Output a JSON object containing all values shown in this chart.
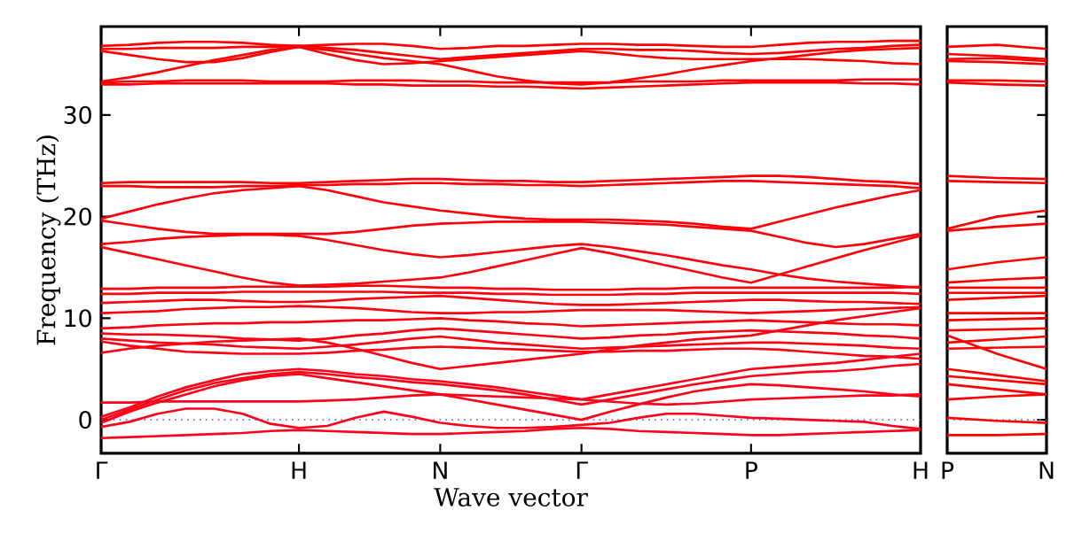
{
  "chart_data": [
    {
      "type": "line",
      "xlabel": "Wave vector",
      "ylabel": "Frequency (THz)",
      "categories": [
        "Γ",
        null,
        null,
        null,
        null,
        null,
        null,
        "H",
        null,
        null,
        null,
        null,
        "N",
        null,
        null,
        null,
        null,
        "Γ",
        null,
        null,
        null,
        null,
        null,
        "P",
        null,
        null,
        null,
        null,
        null,
        "H"
      ],
      "ylim": [
        -3.3,
        38.7
      ],
      "yticks": [
        0,
        10,
        20,
        30
      ],
      "marker": "none",
      "line_style": "solid",
      "ref_lines": [
        {
          "axis": "y",
          "value": 0,
          "color": "#6a6ad0",
          "line_style": "dotted"
        }
      ],
      "series": [
        {
          "color": "#ff0001",
          "values": [
            36.8,
            36.9,
            37.1,
            37.2,
            37.2,
            37.1,
            36.9,
            36.8,
            36.9,
            37.0,
            37.0,
            36.8,
            36.5,
            36.6,
            36.8,
            36.8,
            36.9,
            37.0,
            37.0,
            36.9,
            36.9,
            36.8,
            36.7,
            36.7,
            36.9,
            37.1,
            37.2,
            37.2,
            37.3,
            37.3
          ]
        },
        {
          "color": "#ff0002",
          "values": [
            36.5,
            36.5,
            36.6,
            36.6,
            36.6,
            36.7,
            36.7,
            36.8,
            36.6,
            36.4,
            36.1,
            35.8,
            35.5,
            35.7,
            35.9,
            36.1,
            36.3,
            36.5,
            36.5,
            36.4,
            36.4,
            36.3,
            36.1,
            36.0,
            36.1,
            36.3,
            36.5,
            36.6,
            36.8,
            36.9
          ]
        },
        {
          "color": "#ff0003",
          "values": [
            36.3,
            35.9,
            35.5,
            35.2,
            35.2,
            35.6,
            36.2,
            36.7,
            36.0,
            35.4,
            35.0,
            35.1,
            35.3,
            35.5,
            35.7,
            35.9,
            36.1,
            36.3,
            36.1,
            35.8,
            35.6,
            35.5,
            35.5,
            35.5,
            35.5,
            35.5,
            35.4,
            35.3,
            35.1,
            35.0
          ]
        },
        {
          "color": "#ff0004",
          "values": [
            33.3,
            33.7,
            34.2,
            34.8,
            35.4,
            35.9,
            36.4,
            36.7,
            36.4,
            36.0,
            35.6,
            35.3,
            35.0,
            34.4,
            33.8,
            33.4,
            33.1,
            33.0,
            33.2,
            33.6,
            34.0,
            34.5,
            34.9,
            35.3,
            35.6,
            35.9,
            36.2,
            36.4,
            36.5,
            36.6
          ]
        },
        {
          "color": "#ff0005",
          "values": [
            33.2,
            33.3,
            33.3,
            33.4,
            33.4,
            33.4,
            33.3,
            33.3,
            33.3,
            33.4,
            33.4,
            33.4,
            33.3,
            33.3,
            33.2,
            33.2,
            33.2,
            33.2,
            33.2,
            33.3,
            33.3,
            33.3,
            33.4,
            33.4,
            33.4,
            33.4,
            33.4,
            33.5,
            33.5,
            33.5
          ]
        },
        {
          "color": "#ff0006",
          "values": [
            33.0,
            33.0,
            33.1,
            33.1,
            33.1,
            33.1,
            33.1,
            33.1,
            33.1,
            33.0,
            33.0,
            32.9,
            32.9,
            32.9,
            32.8,
            32.8,
            32.7,
            32.6,
            32.7,
            32.8,
            32.9,
            33.0,
            33.1,
            33.2,
            33.2,
            33.2,
            33.2,
            33.1,
            33.1,
            33.0
          ]
        },
        {
          "color": "#ff0007",
          "values": [
            23.3,
            23.4,
            23.4,
            23.4,
            23.4,
            23.4,
            23.3,
            23.3,
            23.4,
            23.5,
            23.6,
            23.7,
            23.7,
            23.6,
            23.5,
            23.5,
            23.4,
            23.4,
            23.5,
            23.6,
            23.7,
            23.8,
            23.9,
            24.0,
            24.0,
            23.9,
            23.7,
            23.5,
            23.4,
            23.2
          ]
        },
        {
          "color": "#ff0008",
          "values": [
            23.0,
            23.0,
            22.9,
            22.9,
            22.9,
            23.0,
            23.0,
            23.1,
            23.1,
            23.2,
            23.2,
            23.3,
            23.3,
            23.2,
            23.2,
            23.1,
            23.1,
            23.0,
            23.1,
            23.2,
            23.3,
            23.4,
            23.5,
            23.5,
            23.4,
            23.3,
            23.2,
            23.1,
            23.0,
            22.8
          ]
        },
        {
          "color": "#ff0009",
          "values": [
            19.8,
            20.5,
            21.2,
            21.8,
            22.3,
            22.6,
            22.8,
            23.0,
            22.6,
            22.0,
            21.4,
            21.0,
            20.6,
            20.3,
            20.0,
            19.8,
            19.7,
            19.7,
            19.7,
            19.6,
            19.5,
            19.3,
            19.0,
            18.8,
            19.5,
            20.2,
            20.9,
            21.5,
            22.1,
            22.6
          ]
        },
        {
          "color": "#ff000a",
          "values": [
            19.6,
            19.2,
            18.8,
            18.5,
            18.3,
            18.3,
            18.3,
            18.3,
            18.3,
            18.5,
            18.8,
            19.1,
            19.3,
            19.4,
            19.5,
            19.5,
            19.5,
            19.5,
            19.4,
            19.3,
            19.2,
            19.0,
            18.8,
            18.6,
            18.0,
            17.4,
            17.0,
            17.3,
            17.8,
            18.3
          ]
        },
        {
          "color": "#ff000b",
          "values": [
            17.3,
            17.5,
            17.8,
            18.0,
            18.1,
            18.2,
            18.2,
            18.1,
            17.7,
            17.2,
            16.7,
            16.3,
            16.0,
            16.2,
            16.5,
            16.8,
            17.1,
            17.3,
            17.0,
            16.6,
            16.2,
            15.7,
            15.2,
            14.8,
            14.3,
            13.9,
            13.6,
            13.4,
            13.2,
            13.0
          ]
        },
        {
          "color": "#ff000c",
          "values": [
            17.0,
            16.4,
            15.8,
            15.2,
            14.6,
            14.0,
            13.5,
            13.2,
            13.3,
            13.4,
            13.6,
            13.8,
            14.0,
            14.5,
            15.1,
            15.7,
            16.3,
            16.9,
            16.4,
            15.8,
            15.2,
            14.6,
            14.0,
            13.5,
            14.3,
            15.1,
            15.9,
            16.7,
            17.4,
            18.1
          ]
        },
        {
          "color": "#ff000d",
          "values": [
            12.9,
            12.9,
            13.0,
            13.0,
            13.0,
            13.1,
            13.1,
            13.1,
            13.1,
            13.2,
            13.2,
            13.1,
            13.0,
            13.0,
            12.9,
            12.9,
            12.8,
            12.8,
            12.8,
            12.9,
            12.9,
            13.0,
            13.0,
            13.0,
            13.0,
            13.0,
            13.0,
            13.0,
            13.0,
            13.1
          ]
        },
        {
          "color": "#ff000e",
          "values": [
            12.4,
            12.4,
            12.5,
            12.5,
            12.5,
            12.6,
            12.6,
            12.6,
            12.6,
            12.6,
            12.6,
            12.5,
            12.5,
            12.5,
            12.4,
            12.4,
            12.3,
            12.3,
            12.3,
            12.4,
            12.4,
            12.5,
            12.5,
            12.5,
            12.5,
            12.5,
            12.5,
            12.5,
            12.5,
            12.4
          ]
        },
        {
          "color": "#ff000f",
          "values": [
            11.5,
            11.6,
            11.7,
            11.8,
            11.8,
            11.7,
            11.6,
            11.6,
            11.7,
            11.9,
            12.0,
            12.1,
            12.2,
            12.0,
            11.8,
            11.6,
            11.4,
            11.3,
            11.3,
            11.4,
            11.5,
            11.6,
            11.7,
            11.8,
            11.8,
            11.7,
            11.6,
            11.6,
            11.5,
            11.4
          ]
        },
        {
          "color": "#ff0010",
          "values": [
            10.5,
            10.6,
            10.7,
            10.9,
            11.0,
            11.1,
            11.1,
            11.2,
            11.1,
            11.0,
            10.8,
            10.6,
            10.5,
            10.5,
            10.6,
            10.6,
            10.7,
            10.8,
            10.8,
            10.8,
            10.8,
            10.7,
            10.6,
            10.5,
            10.6,
            10.7,
            10.8,
            10.9,
            11.0,
            11.1
          ]
        },
        {
          "color": "#ff0011",
          "values": [
            9.0,
            9.1,
            9.3,
            9.4,
            9.5,
            9.5,
            9.6,
            9.6,
            9.7,
            9.8,
            9.8,
            9.9,
            10.0,
            9.8,
            9.7,
            9.5,
            9.4,
            9.2,
            9.3,
            9.4,
            9.5,
            9.6,
            9.7,
            9.8,
            9.7,
            9.6,
            9.5,
            9.4,
            9.4,
            9.3
          ]
        },
        {
          "color": "#ff0012",
          "values": [
            8.5,
            8.4,
            8.4,
            8.3,
            8.2,
            8.0,
            7.9,
            7.8,
            8.0,
            8.3,
            8.5,
            8.8,
            9.0,
            8.8,
            8.6,
            8.4,
            8.2,
            8.0,
            8.1,
            8.3,
            8.4,
            8.6,
            8.7,
            8.8,
            8.7,
            8.6,
            8.5,
            8.3,
            8.2,
            8.0
          ]
        },
        {
          "color": "#ff0013",
          "values": [
            8.0,
            7.8,
            7.6,
            7.5,
            7.4,
            7.2,
            7.1,
            7.0,
            7.2,
            7.4,
            7.7,
            8.0,
            8.2,
            7.9,
            7.6,
            7.4,
            7.2,
            7.0,
            7.1,
            7.2,
            7.3,
            7.4,
            7.5,
            7.6,
            7.6,
            7.5,
            7.4,
            7.3,
            7.1,
            7.0
          ]
        },
        {
          "color": "#ff0014",
          "values": [
            7.7,
            7.3,
            7.0,
            6.7,
            6.6,
            6.5,
            6.5,
            6.5,
            6.6,
            6.8,
            6.9,
            7.1,
            7.2,
            7.1,
            7.0,
            6.9,
            6.8,
            6.7,
            6.7,
            6.8,
            6.8,
            6.9,
            7.0,
            7.0,
            6.9,
            6.7,
            6.5,
            6.3,
            6.2,
            6.0
          ]
        },
        {
          "color": "#ff0015",
          "values": [
            6.6,
            7.0,
            7.3,
            7.5,
            7.7,
            7.8,
            7.9,
            8.0,
            7.6,
            7.0,
            6.3,
            5.6,
            5.0,
            5.3,
            5.6,
            5.9,
            6.2,
            6.5,
            6.9,
            7.3,
            7.6,
            7.9,
            8.1,
            8.3,
            8.8,
            9.3,
            9.8,
            10.2,
            10.6,
            11.0
          ]
        },
        {
          "color": "#ff0016",
          "values": [
            0.3,
            1.2,
            2.3,
            3.2,
            3.9,
            4.5,
            4.8,
            5.0,
            4.8,
            4.5,
            4.3,
            4.0,
            3.8,
            3.5,
            3.2,
            2.8,
            2.4,
            2.0,
            2.5,
            3.0,
            3.5,
            4.0,
            4.5,
            5.0,
            5.2,
            5.4,
            5.6,
            5.9,
            6.2,
            6.5
          ]
        },
        {
          "color": "#ff0017",
          "values": [
            0,
            1.0,
            2.0,
            2.9,
            3.6,
            4.1,
            4.5,
            4.7,
            4.5,
            4.2,
            4.0,
            3.7,
            3.5,
            3.2,
            2.9,
            2.5,
            2.0,
            1.5,
            2.0,
            2.5,
            3.0,
            3.5,
            3.9,
            4.3,
            4.5,
            4.7,
            4.8,
            5.0,
            5.3,
            5.5
          ]
        },
        {
          "color": "#ff0018",
          "values": [
            -0.3,
            0.8,
            1.7,
            2.5,
            3.3,
            3.9,
            4.3,
            4.5,
            4.1,
            3.7,
            3.3,
            2.9,
            2.5,
            2.0,
            1.5,
            1.0,
            0.5,
            0.0,
            0.8,
            1.5,
            2.2,
            2.8,
            3.2,
            3.5,
            3.4,
            3.2,
            3.0,
            2.8,
            2.5,
            2.3
          ]
        },
        {
          "color": "#ff0019",
          "values": [
            1.7,
            1.7,
            1.8,
            1.8,
            1.8,
            1.8,
            1.8,
            1.8,
            1.9,
            2.0,
            2.2,
            2.4,
            2.5,
            2.4,
            2.3,
            2.2,
            2.1,
            2.0,
            1.8,
            1.6,
            1.5,
            1.6,
            1.8,
            2.0,
            2.1,
            2.2,
            2.3,
            2.4,
            2.4,
            2.5
          ]
        },
        {
          "color": "#ff001a",
          "values": [
            -0.7,
            -0.2,
            0.6,
            1.1,
            1.1,
            0.6,
            -0.4,
            -0.8,
            -0.6,
            0.2,
            0.8,
            0.3,
            -0.3,
            -0.6,
            -0.8,
            -0.8,
            -0.7,
            -0.5,
            -0.3,
            0.2,
            0.6,
            0.6,
            0.4,
            0.2,
            0.1,
            0,
            -0.1,
            -0.2,
            -0.6,
            -0.9
          ]
        },
        {
          "color": "#ff001b",
          "values": [
            -1.8,
            -1.7,
            -1.6,
            -1.5,
            -1.4,
            -1.3,
            -1.1,
            -1.0,
            -1.1,
            -1.2,
            -1.3,
            -1.4,
            -1.4,
            -1.3,
            -1.2,
            -1.1,
            -0.9,
            -0.8,
            -0.9,
            -1.1,
            -1.2,
            -1.3,
            -1.4,
            -1.5,
            -1.5,
            -1.4,
            -1.3,
            -1.2,
            -1.1,
            -1.0
          ]
        }
      ]
    },
    {
      "type": "line",
      "categories": [
        "P",
        null,
        "N"
      ],
      "ylim": [
        -3.3,
        38.7
      ],
      "yticks": [
        0,
        10,
        20,
        30
      ],
      "tick_labels": "x",
      "marker": "none",
      "line_style": "solid",
      "ref_lines": [
        {
          "axis": "y",
          "value": 0,
          "color": "#6a6ad0",
          "line_style": "dotted"
        }
      ],
      "series": [
        {
          "color": "#ff0000",
          "values": [
            36.7,
            36.9,
            36.5
          ]
        },
        {
          "color": "#ff0000",
          "values": [
            36.0,
            35.8,
            35.5
          ]
        },
        {
          "color": "#ff0000",
          "values": [
            35.5,
            35.6,
            35.3
          ]
        },
        {
          "color": "#ff0000",
          "values": [
            35.3,
            35.2,
            35.0
          ]
        },
        {
          "color": "#ff0000",
          "values": [
            33.4,
            33.4,
            33.3
          ]
        },
        {
          "color": "#ff0000",
          "values": [
            33.2,
            33.0,
            32.9
          ]
        },
        {
          "color": "#ff0000",
          "values": [
            24.0,
            23.8,
            23.7
          ]
        },
        {
          "color": "#ff0000",
          "values": [
            23.5,
            23.4,
            23.3
          ]
        },
        {
          "color": "#ff0000",
          "values": [
            18.8,
            20.0,
            20.6
          ]
        },
        {
          "color": "#ff0000",
          "values": [
            18.6,
            19.0,
            19.3
          ]
        },
        {
          "color": "#ff0000",
          "values": [
            14.8,
            15.5,
            16.0
          ]
        },
        {
          "color": "#ff0000",
          "values": [
            13.5,
            13.8,
            14.0
          ]
        },
        {
          "color": "#ff0000",
          "values": [
            13.0,
            13.0,
            13.0
          ]
        },
        {
          "color": "#ff0000",
          "values": [
            12.5,
            12.5,
            12.5
          ]
        },
        {
          "color": "#ff0000",
          "values": [
            11.8,
            12.0,
            12.2
          ]
        },
        {
          "color": "#ff0000",
          "values": [
            10.5,
            10.5,
            10.5
          ]
        },
        {
          "color": "#ff0000",
          "values": [
            9.8,
            9.9,
            10.0
          ]
        },
        {
          "color": "#ff0000",
          "values": [
            8.8,
            8.9,
            9.0
          ]
        },
        {
          "color": "#ff0000",
          "values": [
            7.6,
            7.9,
            8.2
          ]
        },
        {
          "color": "#ff0000",
          "values": [
            7.0,
            7.1,
            7.2
          ]
        },
        {
          "color": "#ff0000",
          "values": [
            8.3,
            6.5,
            5.0
          ]
        },
        {
          "color": "#ff0000",
          "values": [
            5.0,
            4.4,
            3.8
          ]
        },
        {
          "color": "#ff0000",
          "values": [
            4.3,
            3.9,
            3.5
          ]
        },
        {
          "color": "#ff0000",
          "values": [
            3.5,
            3.0,
            2.5
          ]
        },
        {
          "color": "#ff0000",
          "values": [
            2.0,
            2.3,
            2.5
          ]
        },
        {
          "color": "#ff0000",
          "values": [
            0.2,
            -0.1,
            -0.3
          ]
        },
        {
          "color": "#ff0000",
          "values": [
            -1.5,
            -1.5,
            -1.4
          ]
        }
      ]
    }
  ]
}
